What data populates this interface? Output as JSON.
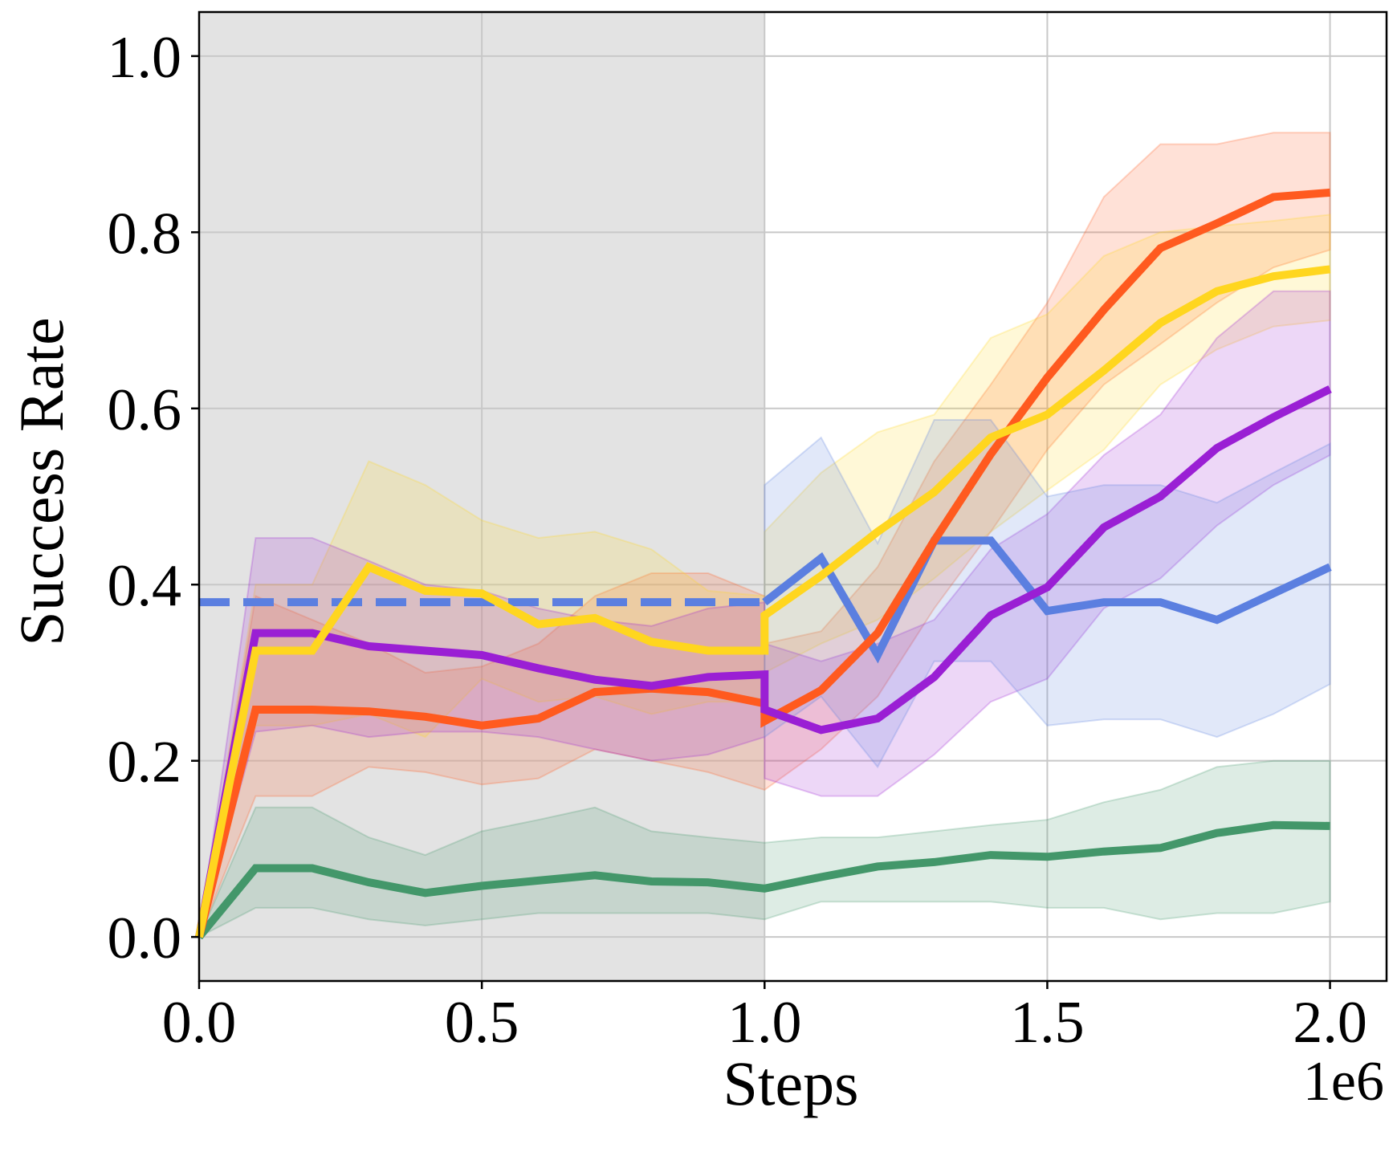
{
  "chart_data": {
    "type": "line",
    "title": "",
    "xlabel": "Steps",
    "ylabel": "Success Rate",
    "x_offset_label": "1e6",
    "xlim": [
      0.0,
      2.1
    ],
    "ylim": [
      -0.05,
      1.05
    ],
    "x_ticks": [
      0.0,
      0.5,
      1.0,
      1.5,
      2.0
    ],
    "x_tick_labels": [
      "0.0",
      "0.5",
      "1.0",
      "1.5",
      "2.0"
    ],
    "y_ticks": [
      0.0,
      0.2,
      0.4,
      0.6,
      0.8,
      1.0
    ],
    "y_tick_labels": [
      "0.0",
      "0.2",
      "0.4",
      "0.6",
      "0.8",
      "1.0"
    ],
    "grid": true,
    "shaded_region": {
      "x_start": 0.0,
      "x_end": 1.0,
      "color": "#e3e3e3"
    },
    "reference_line": {
      "y": 0.38,
      "x_start": 0.0,
      "x_end": 1.0,
      "style": "dashed",
      "color": "#5b7fe0"
    },
    "series": [
      {
        "name": "green",
        "color": "#43976a",
        "x": [
          0.0,
          0.1,
          0.2,
          0.3,
          0.4,
          0.5,
          0.6,
          0.7,
          0.8,
          0.9,
          1.0,
          1.1,
          1.2,
          1.3,
          1.4,
          1.5,
          1.6,
          1.7,
          1.8,
          1.9,
          2.0
        ],
        "y": [
          0.0,
          0.078,
          0.078,
          0.062,
          0.05,
          0.058,
          0.064,
          0.07,
          0.063,
          0.062,
          0.055,
          0.068,
          0.08,
          0.085,
          0.093,
          0.091,
          0.097,
          0.101,
          0.118,
          0.127,
          0.126
        ],
        "upper": [
          0.0,
          0.147,
          0.147,
          0.113,
          0.093,
          0.12,
          0.133,
          0.147,
          0.12,
          0.113,
          0.107,
          0.113,
          0.113,
          0.12,
          0.127,
          0.133,
          0.153,
          0.167,
          0.193,
          0.2,
          0.2
        ],
        "lower": [
          0.0,
          0.033,
          0.033,
          0.02,
          0.013,
          0.02,
          0.027,
          0.027,
          0.027,
          0.027,
          0.02,
          0.04,
          0.04,
          0.04,
          0.04,
          0.033,
          0.033,
          0.02,
          0.027,
          0.027,
          0.04
        ]
      },
      {
        "name": "orange",
        "color": "#ff5a1f",
        "x": [
          0.0,
          0.1,
          0.2,
          0.3,
          0.4,
          0.5,
          0.6,
          0.7,
          0.8,
          0.9,
          1.0,
          1.0,
          1.1,
          1.2,
          1.3,
          1.4,
          1.5,
          1.6,
          1.7,
          1.8,
          1.9,
          2.0
        ],
        "y": [
          0.0,
          0.258,
          0.258,
          0.256,
          0.25,
          0.24,
          0.248,
          0.278,
          0.282,
          0.278,
          0.265,
          0.245,
          0.28,
          0.345,
          0.45,
          0.548,
          0.635,
          0.712,
          0.782,
          0.81,
          0.84,
          0.845
        ],
        "upper": [
          0.0,
          0.387,
          0.36,
          0.333,
          0.3,
          0.307,
          0.333,
          0.387,
          0.413,
          0.413,
          0.387,
          0.333,
          0.347,
          0.42,
          0.54,
          0.627,
          0.72,
          0.84,
          0.9,
          0.9,
          0.913,
          0.913
        ],
        "lower": [
          0.0,
          0.16,
          0.16,
          0.193,
          0.187,
          0.173,
          0.18,
          0.213,
          0.2,
          0.187,
          0.167,
          0.167,
          0.213,
          0.273,
          0.373,
          0.46,
          0.553,
          0.627,
          0.673,
          0.72,
          0.76,
          0.78
        ]
      },
      {
        "name": "yellow",
        "color": "#ffd61f",
        "x": [
          0.0,
          0.1,
          0.2,
          0.3,
          0.4,
          0.5,
          0.6,
          0.7,
          0.8,
          0.9,
          1.0,
          1.0,
          1.1,
          1.2,
          1.3,
          1.4,
          1.5,
          1.6,
          1.7,
          1.8,
          1.9,
          2.0
        ],
        "y": [
          0.0,
          0.325,
          0.325,
          0.42,
          0.393,
          0.39,
          0.355,
          0.362,
          0.335,
          0.325,
          0.325,
          0.365,
          0.41,
          0.46,
          0.505,
          0.567,
          0.593,
          0.643,
          0.697,
          0.733,
          0.75,
          0.758
        ],
        "upper": [
          0.0,
          0.4,
          0.4,
          0.54,
          0.513,
          0.473,
          0.453,
          0.46,
          0.44,
          0.393,
          0.387,
          0.46,
          0.527,
          0.573,
          0.593,
          0.68,
          0.707,
          0.773,
          0.8,
          0.807,
          0.813,
          0.82
        ],
        "lower": [
          0.0,
          0.24,
          0.24,
          0.253,
          0.227,
          0.293,
          0.267,
          0.273,
          0.253,
          0.267,
          0.267,
          0.3,
          0.333,
          0.36,
          0.407,
          0.46,
          0.507,
          0.553,
          0.627,
          0.667,
          0.693,
          0.7
        ]
      },
      {
        "name": "purple",
        "color": "#9a1fd4",
        "x": [
          0.0,
          0.1,
          0.2,
          0.3,
          0.4,
          0.5,
          0.6,
          0.7,
          0.8,
          0.9,
          1.0,
          1.0,
          1.1,
          1.2,
          1.3,
          1.4,
          1.5,
          1.6,
          1.7,
          1.8,
          1.9,
          2.0
        ],
        "y": [
          0.0,
          0.345,
          0.345,
          0.33,
          0.325,
          0.32,
          0.305,
          0.292,
          0.285,
          0.295,
          0.298,
          0.258,
          0.235,
          0.248,
          0.295,
          0.365,
          0.397,
          0.465,
          0.5,
          0.555,
          0.59,
          0.622
        ],
        "upper": [
          0.0,
          0.453,
          0.453,
          0.427,
          0.4,
          0.393,
          0.373,
          0.36,
          0.353,
          0.373,
          0.38,
          0.333,
          0.313,
          0.333,
          0.36,
          0.44,
          0.48,
          0.547,
          0.593,
          0.68,
          0.733,
          0.733
        ],
        "lower": [
          0.0,
          0.233,
          0.24,
          0.227,
          0.233,
          0.233,
          0.227,
          0.213,
          0.2,
          0.207,
          0.227,
          0.18,
          0.16,
          0.16,
          0.207,
          0.267,
          0.293,
          0.373,
          0.407,
          0.467,
          0.513,
          0.547
        ]
      },
      {
        "name": "blue",
        "color": "#5b7fe0",
        "x": [
          1.0,
          1.1,
          1.2,
          1.3,
          1.4,
          1.5,
          1.6,
          1.7,
          1.8,
          1.9,
          2.0
        ],
        "y": [
          0.38,
          0.43,
          0.32,
          0.45,
          0.45,
          0.37,
          0.38,
          0.38,
          0.36,
          0.39,
          0.42
        ],
        "upper": [
          0.513,
          0.567,
          0.447,
          0.587,
          0.587,
          0.5,
          0.513,
          0.513,
          0.493,
          0.527,
          0.56
        ],
        "lower": [
          0.227,
          0.273,
          0.193,
          0.313,
          0.313,
          0.24,
          0.247,
          0.247,
          0.227,
          0.253,
          0.287
        ]
      }
    ]
  }
}
